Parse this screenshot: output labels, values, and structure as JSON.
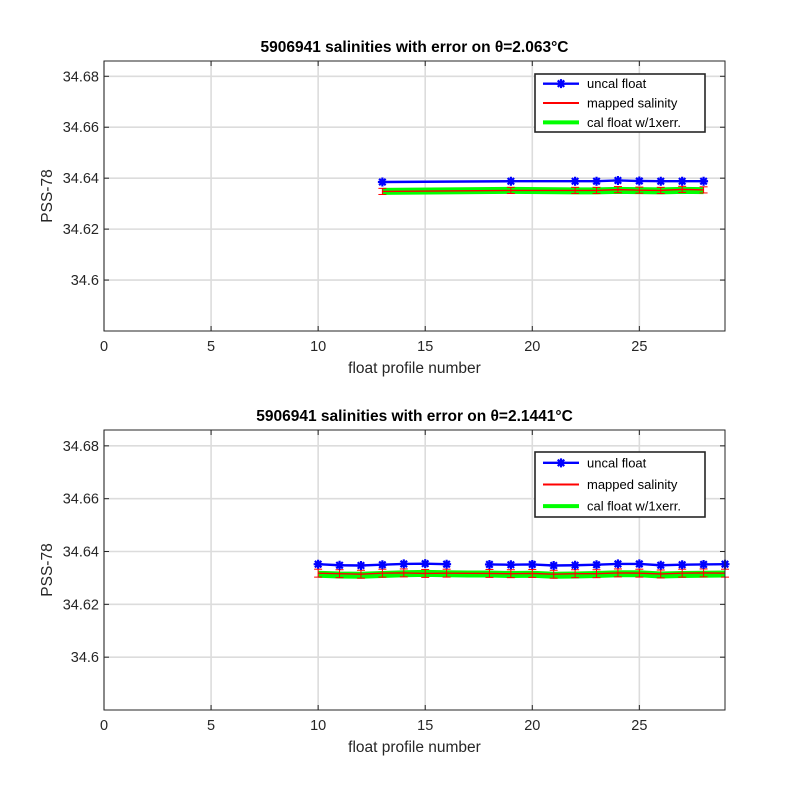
{
  "chart_data": [
    {
      "type": "line",
      "title": "5906941 salinities with error on θ=2.063°C",
      "xlabel": "float profile number",
      "ylabel": "PSS-78",
      "xlim": [
        0,
        29
      ],
      "ylim": [
        34.58,
        34.686
      ],
      "xticks": [
        0,
        5,
        10,
        15,
        20,
        25
      ],
      "yticks": [
        34.6,
        34.62,
        34.64,
        34.66,
        34.68
      ],
      "ytick_labels": [
        "34.6",
        "34.62",
        "34.64",
        "34.66",
        "34.68"
      ],
      "grid": true,
      "legend_position": "top-right",
      "series": [
        {
          "name": "uncal float",
          "color": "#0000ff",
          "marker": "star",
          "x": [
            13,
            19,
            22,
            23,
            24,
            25,
            26,
            27,
            28
          ],
          "y": [
            34.6385,
            34.6388,
            34.6388,
            34.6388,
            34.6391,
            34.6389,
            34.6388,
            34.6388,
            34.6388
          ]
        },
        {
          "name": "mapped salinity",
          "color": "#ff0000",
          "errorbars": true,
          "x": [
            13,
            19,
            22,
            23,
            24,
            25,
            26,
            27,
            28
          ],
          "y": [
            34.6348,
            34.6352,
            34.6352,
            34.6352,
            34.6355,
            34.6353,
            34.6352,
            34.6356,
            34.6354
          ],
          "err": [
            0.0012,
            0.0012,
            0.0012,
            0.0012,
            0.0012,
            0.0012,
            0.0012,
            0.0012,
            0.0012
          ]
        },
        {
          "name": "cal float w/1xerr.",
          "color": "#00ff00",
          "x": [
            13,
            19,
            22,
            23,
            24,
            25,
            26,
            27,
            28
          ],
          "y": [
            34.6348,
            34.6352,
            34.635,
            34.635,
            34.6352,
            34.6351,
            34.635,
            34.6352,
            34.6351
          ]
        }
      ]
    },
    {
      "type": "line",
      "title": "5906941 salinities with error on θ=2.1441°C",
      "xlabel": "float profile number",
      "ylabel": "PSS-78",
      "xlim": [
        0,
        29
      ],
      "ylim": [
        34.58,
        34.686
      ],
      "xticks": [
        0,
        5,
        10,
        15,
        20,
        25
      ],
      "yticks": [
        34.6,
        34.62,
        34.64,
        34.66,
        34.68
      ],
      "ytick_labels": [
        "34.6",
        "34.62",
        "34.64",
        "34.66",
        "34.68"
      ],
      "grid": true,
      "legend_position": "top-right",
      "series": [
        {
          "name": "uncal float",
          "color": "#0000ff",
          "marker": "star",
          "x": [
            10,
            11,
            12,
            13,
            14,
            15,
            16,
            null,
            18,
            19,
            20,
            21,
            22,
            23,
            24,
            25,
            26,
            27,
            28,
            29
          ],
          "y": [
            34.6352,
            34.6348,
            34.6347,
            34.635,
            34.6353,
            34.6354,
            34.6352,
            null,
            34.6351,
            34.635,
            34.6351,
            34.6347,
            34.6348,
            34.635,
            34.6353,
            34.6353,
            34.6348,
            34.635,
            34.6351,
            34.6352
          ]
        },
        {
          "name": "mapped salinity",
          "color": "#ff0000",
          "errorbars": true,
          "x": [
            10,
            11,
            12,
            13,
            14,
            15,
            16,
            18,
            19,
            20,
            21,
            22,
            23,
            24,
            25,
            26,
            27,
            28,
            29
          ],
          "y": [
            34.6318,
            34.6316,
            34.6314,
            34.6318,
            34.6319,
            34.6317,
            34.6318,
            34.6317,
            34.6316,
            34.6317,
            34.6314,
            34.6316,
            34.6316,
            34.6319,
            34.6318,
            34.6315,
            34.6318,
            34.6319,
            34.6318
          ],
          "err": [
            0.0015,
            0.0015,
            0.0015,
            0.0015,
            0.0015,
            0.0015,
            0.0015,
            0.0015,
            0.0015,
            0.0015,
            0.0015,
            0.0015,
            0.0015,
            0.0015,
            0.0015,
            0.0015,
            0.0015,
            0.0015,
            0.0015
          ]
        },
        {
          "name": "cal float w/1xerr.",
          "color": "#00ff00",
          "x": [
            10,
            11,
            12,
            13,
            14,
            15,
            16,
            17,
            18,
            19,
            20,
            21,
            22,
            23,
            24,
            25,
            26,
            27,
            28,
            29
          ],
          "y": [
            34.6314,
            34.6311,
            34.631,
            34.6313,
            34.6316,
            34.6317,
            34.6316,
            34.6315,
            34.6315,
            34.6313,
            34.6314,
            34.631,
            34.6311,
            34.6313,
            34.6316,
            34.6316,
            34.6311,
            34.6313,
            34.6314,
            34.6315
          ]
        }
      ]
    }
  ]
}
